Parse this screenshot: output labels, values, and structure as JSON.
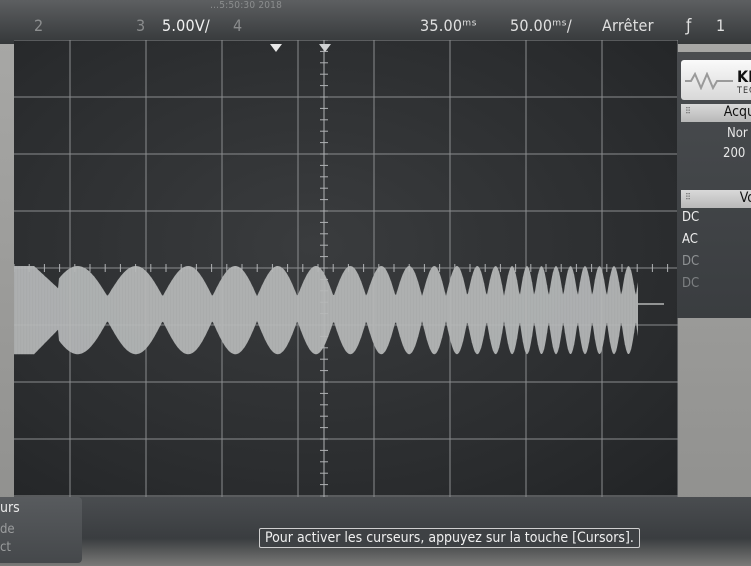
{
  "header": {
    "timestamp_fragment": "…5:50:30 2018",
    "channels": [
      {
        "number": "2",
        "scale": ""
      },
      {
        "number": "3",
        "scale": "5.00V/"
      },
      {
        "number": "4",
        "scale": ""
      }
    ],
    "delay": "35.00ᵐˢ",
    "timebase": "50.00ᵐˢ/",
    "run_state": "Arrêter",
    "trigger_icon": "trigger-rising-edge-icon",
    "trigger_symbol": "ƒ",
    "trigger_channel": "1"
  },
  "side_panel": {
    "brand": "KE",
    "brand_sub": "TEC",
    "logo_icon": "keysight-wave-icon",
    "acquisition_title": "Acqu",
    "acquisition_mode": "Nor",
    "acquisition_rate": "200",
    "voltage_title": "Vo",
    "couplings": [
      "DC",
      "AC",
      "DC",
      "DC"
    ]
  },
  "waveform": {
    "type": "amplitude-modulated sine burst",
    "trace_color": "#b4b6b6",
    "graticule_color": "#8a8c8e",
    "grid": {
      "vertical_divisions": 10,
      "horizontal_divisions": 8
    }
  },
  "bottom": {
    "cursors_label": "urs",
    "cursors_mode": "de",
    "cursors_act": "ct",
    "message": "Pour activer les curseurs, appuyez sur la touche [Cursors]."
  }
}
